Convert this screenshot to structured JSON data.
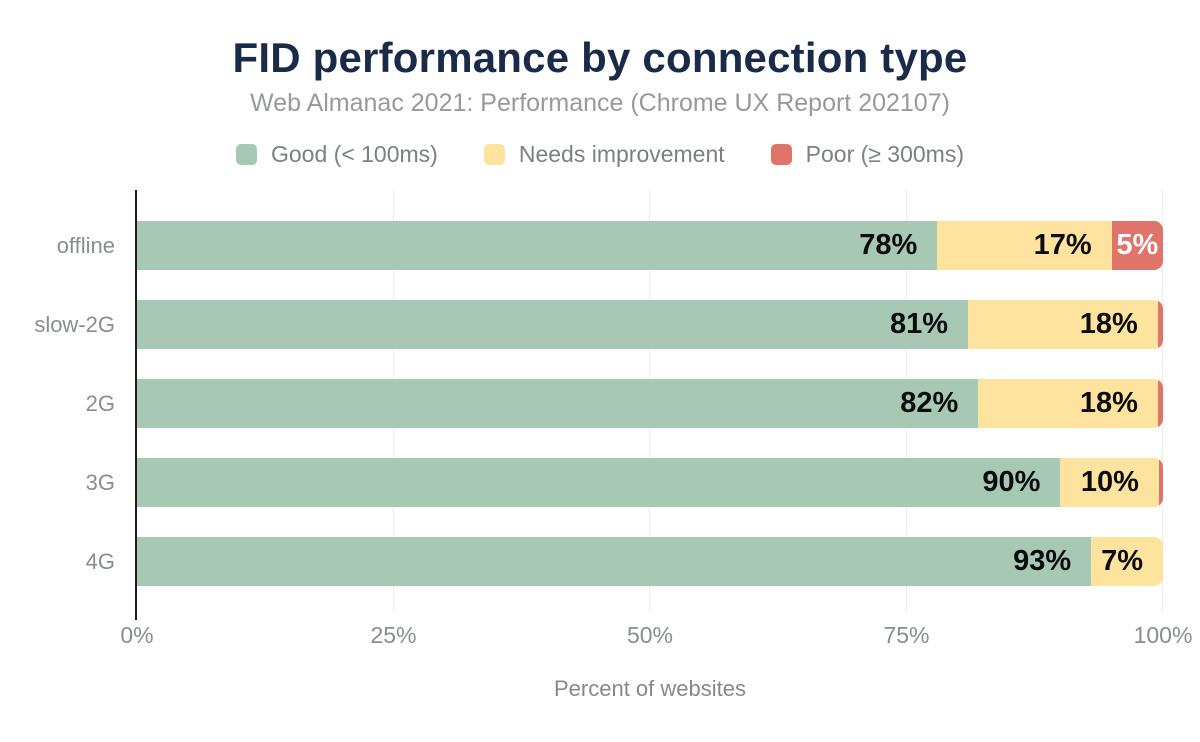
{
  "title": "FID performance by connection type",
  "subtitle": "Web Almanac 2021: Performance (Chrome UX Report 202107)",
  "xlabel": "Percent of websites",
  "colors": {
    "good": "#a6c8b5",
    "ni": "#fde39d",
    "poor": "#e0736a",
    "title_text": "#1a2b49",
    "grid": "#ececec",
    "axis_line": "#1c1c1c",
    "data_label": "#0c0c0c",
    "data_label_inverse": "#ffffff",
    "muted_text": "#898d91",
    "legend_text": "#7c8084"
  },
  "legend": [
    {
      "label": "Good (< 100ms)",
      "color": "good"
    },
    {
      "label": "Needs improvement",
      "color": "ni"
    },
    {
      "label": "Poor (≥ 300ms)",
      "color": "poor"
    }
  ],
  "axis": {
    "ticks": [
      {
        "label": "0%",
        "pos": 0
      },
      {
        "label": "25%",
        "pos": 25
      },
      {
        "label": "50%",
        "pos": 50
      },
      {
        "label": "75%",
        "pos": 75
      },
      {
        "label": "100%",
        "pos": 100
      }
    ]
  },
  "rows": [
    {
      "category": "offline",
      "segments": [
        {
          "color": "good",
          "width": 78,
          "label": "78%"
        },
        {
          "color": "ni",
          "width": 17,
          "label": "17%"
        },
        {
          "color": "poor",
          "width": 5,
          "label": "5%",
          "inverse": true
        }
      ]
    },
    {
      "category": "slow-2G",
      "segments": [
        {
          "color": "good",
          "width": 81,
          "label": "81%"
        },
        {
          "color": "ni",
          "width": 18.5,
          "label": "18%"
        },
        {
          "color": "poor",
          "width": 0.5,
          "label": ""
        }
      ]
    },
    {
      "category": "2G",
      "segments": [
        {
          "color": "good",
          "width": 82,
          "label": "82%"
        },
        {
          "color": "ni",
          "width": 17.5,
          "label": "18%"
        },
        {
          "color": "poor",
          "width": 0.5,
          "label": ""
        }
      ]
    },
    {
      "category": "3G",
      "segments": [
        {
          "color": "good",
          "width": 90,
          "label": "90%"
        },
        {
          "color": "ni",
          "width": 9.6,
          "label": "10%"
        },
        {
          "color": "poor",
          "width": 0.4,
          "label": ""
        }
      ]
    },
    {
      "category": "4G",
      "segments": [
        {
          "color": "good",
          "width": 93,
          "label": "93%"
        },
        {
          "color": "ni",
          "width": 7,
          "label": "7%"
        }
      ]
    }
  ],
  "chart_data": {
    "type": "bar",
    "orientation": "horizontal",
    "stacked": true,
    "title": "FID performance by connection type",
    "subtitle": "Web Almanac 2021: Performance (Chrome UX Report 202107)",
    "categories": [
      "offline",
      "slow-2G",
      "2G",
      "3G",
      "4G"
    ],
    "series": [
      {
        "name": "Good (< 100ms)",
        "values": [
          78,
          81,
          82,
          90,
          93
        ]
      },
      {
        "name": "Needs improvement",
        "values": [
          17,
          18,
          18,
          10,
          7
        ]
      },
      {
        "name": "Poor (≥ 300ms)",
        "values": [
          5,
          1,
          1,
          0,
          0
        ]
      }
    ],
    "xlabel": "Percent of websites",
    "ylabel": "",
    "xlim": [
      0,
      100
    ],
    "x_ticks": [
      "0%",
      "25%",
      "50%",
      "75%",
      "100%"
    ],
    "grid": "vertical-only",
    "legend_position": "top"
  }
}
